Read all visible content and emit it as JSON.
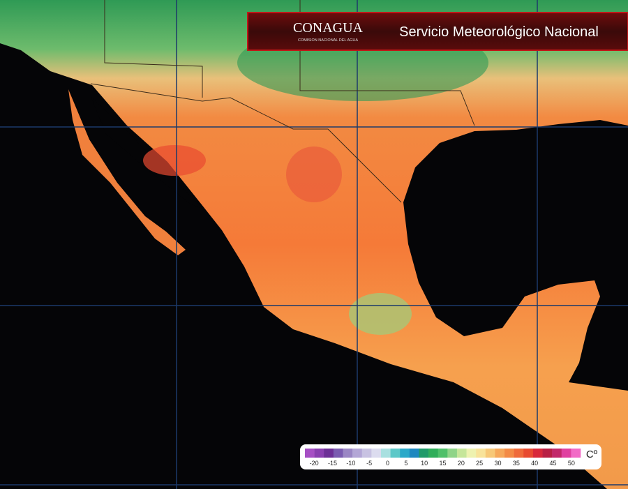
{
  "header": {
    "logo": "CONAGUA",
    "logo_subtitle": "COMISION NACIONAL DEL AGUA",
    "title": "Servicio Meteorológico Nacional"
  },
  "legend": {
    "labels": [
      -20,
      -15,
      -10,
      -5,
      0,
      5,
      10,
      15,
      20,
      25,
      30,
      35,
      40,
      45,
      50
    ],
    "unit": "Cº",
    "colors": [
      "#a64fc4",
      "#8a3fb0",
      "#6c2f96",
      "#7a5bb0",
      "#9a86c4",
      "#b3a6d6",
      "#c8c2e2",
      "#dcdcef",
      "#a8e0e0",
      "#5cc8c8",
      "#2aa9c9",
      "#1e88c0",
      "#1f9a6a",
      "#2fae5a",
      "#4fc06a",
      "#8fd488",
      "#c6e69a",
      "#eef2b0",
      "#f8e39a",
      "#f7c877",
      "#f6a85a",
      "#f38a45",
      "#ef6a3a",
      "#e84a30",
      "#d8283a",
      "#b81f44",
      "#c2286a",
      "#e040a0",
      "#f26ac6"
    ]
  }
}
